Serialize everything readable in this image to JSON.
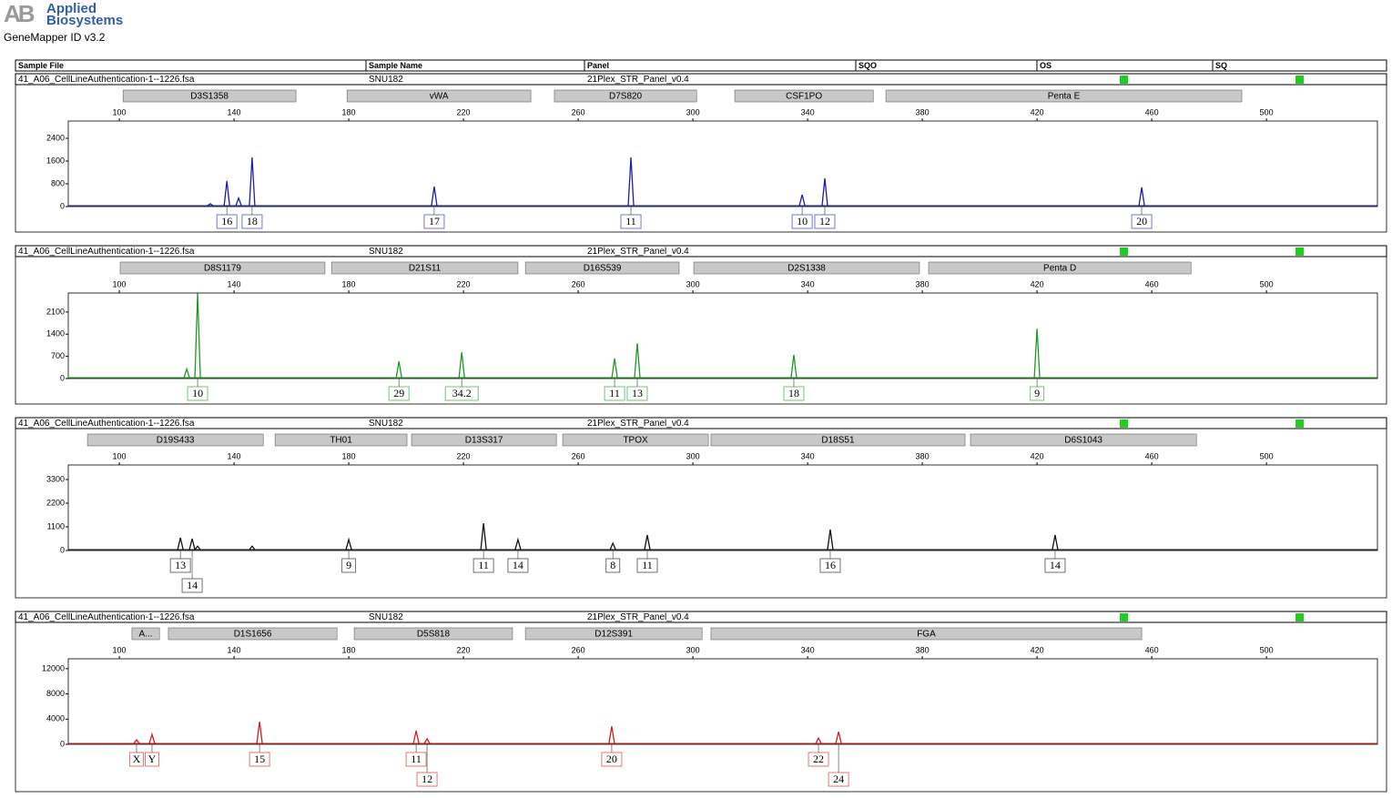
{
  "header": {
    "brand": [
      "Applied",
      "Biosystems"
    ],
    "app": "GeneMapper ID v3.2"
  },
  "columns": [
    "Sample File",
    "Sample Name",
    "Panel",
    "SQO",
    "OS",
    "SQ"
  ],
  "panels": [
    {
      "sample_file": "41_A06_CellLineAuthentication-1--1226.fsa",
      "sample_name": "SNU182",
      "panel": "21Plex_STR_Panel_v0.4",
      "color": "#1c1cb0",
      "xlim": [
        82.2,
        538.7
      ],
      "xticks": [
        100,
        140,
        180,
        220,
        260,
        300,
        340,
        380,
        420,
        460,
        500
      ],
      "ylim": [
        0,
        3008
      ],
      "yticks": [
        0,
        800,
        1600,
        2400
      ],
      "markers": [
        {
          "name": "D3S1358",
          "range": [
            101.3,
            161.6
          ]
        },
        {
          "name": "vWA",
          "range": [
            179.4,
            243.5
          ]
        },
        {
          "name": "D7S820",
          "range": [
            251.7,
            301.3
          ]
        },
        {
          "name": "CSF1PO",
          "range": [
            314.6,
            362.9
          ]
        },
        {
          "name": "Penta E",
          "range": [
            367.3,
            491.4
          ]
        }
      ],
      "peaks": [
        {
          "x": 131.7,
          "height": 100,
          "label": null
        },
        {
          "x": 137.5,
          "height": 896,
          "label": "16"
        },
        {
          "x": 141.6,
          "height": 300,
          "label": null
        },
        {
          "x": 146.3,
          "height": 1728,
          "label": "18"
        },
        {
          "x": 209.8,
          "height": 704,
          "label": "17"
        },
        {
          "x": 278.4,
          "height": 1728,
          "label": "11"
        },
        {
          "x": 338.1,
          "height": 416,
          "label": "10"
        },
        {
          "x": 346.0,
          "height": 992,
          "label": "12"
        },
        {
          "x": 456.5,
          "height": 672,
          "label": "20"
        }
      ]
    },
    {
      "sample_file": "41_A06_CellLineAuthentication-1--1226.fsa",
      "sample_name": "SNU182",
      "panel": "21Plex_STR_Panel_v0.4",
      "color": "#1e9a1e",
      "xlim": [
        82.2,
        538.7
      ],
      "xticks": [
        100,
        140,
        180,
        220,
        260,
        300,
        340,
        380,
        420,
        460,
        500
      ],
      "ylim": [
        0,
        2700
      ],
      "yticks": [
        0,
        700,
        1400,
        2100
      ],
      "markers": [
        {
          "name": "D8S1179",
          "range": [
            100.3,
            171.7
          ]
        },
        {
          "name": "D21S11",
          "range": [
            174.0,
            239.0
          ]
        },
        {
          "name": "D16S539",
          "range": [
            241.6,
            295.2
          ]
        },
        {
          "name": "D2S1338",
          "range": [
            300.3,
            379.0
          ]
        },
        {
          "name": "Penta D",
          "range": [
            382.2,
            473.7
          ]
        }
      ],
      "peaks": [
        {
          "x": 123.5,
          "height": 300,
          "label": null
        },
        {
          "x": 127.3,
          "height": 2686,
          "label": "10"
        },
        {
          "x": 197.5,
          "height": 543,
          "label": "29"
        },
        {
          "x": 219.4,
          "height": 829,
          "label": "34.2"
        },
        {
          "x": 272.7,
          "height": 629,
          "label": "11"
        },
        {
          "x": 280.6,
          "height": 1114,
          "label": "13"
        },
        {
          "x": 335.2,
          "height": 743,
          "label": "18"
        },
        {
          "x": 420.0,
          "height": 1571,
          "label": "9"
        }
      ]
    },
    {
      "sample_file": "41_A06_CellLineAuthentication-1--1226.fsa",
      "sample_name": "SNU182",
      "panel": "21Plex_STR_Panel_v0.4",
      "color": "#111111",
      "xlim": [
        82.2,
        538.7
      ],
      "xticks": [
        100,
        140,
        180,
        220,
        260,
        300,
        340,
        380,
        420,
        460,
        500
      ],
      "ylim": [
        0,
        3977
      ],
      "yticks": [
        0,
        1100,
        2200,
        3300
      ],
      "markers": [
        {
          "name": "D19S433",
          "range": [
            88.9,
            150.2
          ]
        },
        {
          "name": "TH01",
          "range": [
            154.3,
            200.3
          ]
        },
        {
          "name": "D13S317",
          "range": [
            201.9,
            252.4
          ]
        },
        {
          "name": "TPOX",
          "range": [
            254.6,
            305.4
          ]
        },
        {
          "name": "D18S51",
          "range": [
            306.3,
            394.9
          ]
        },
        {
          "name": "D6S1043",
          "range": [
            396.8,
            475.6
          ]
        }
      ],
      "peaks": [
        {
          "x": 121.3,
          "height": 592,
          "label": "13"
        },
        {
          "x": 125.4,
          "height": 550,
          "label": "14"
        },
        {
          "x": 127.3,
          "height": 200,
          "label": null
        },
        {
          "x": 146.3,
          "height": 200,
          "label": null
        },
        {
          "x": 180.0,
          "height": 508,
          "label": "9"
        },
        {
          "x": 227.0,
          "height": 1269,
          "label": "11"
        },
        {
          "x": 239.0,
          "height": 508,
          "label": "14"
        },
        {
          "x": 272.1,
          "height": 338,
          "label": "8"
        },
        {
          "x": 284.1,
          "height": 719,
          "label": "11"
        },
        {
          "x": 347.9,
          "height": 973,
          "label": "16"
        },
        {
          "x": 426.3,
          "height": 719,
          "label": "14"
        }
      ]
    },
    {
      "sample_file": "41_A06_CellLineAuthentication-1--1226.fsa",
      "sample_name": "SNU182",
      "panel": "21Plex_STR_Panel_v0.4",
      "color": "#d01c1c",
      "xlim": [
        82.2,
        538.7
      ],
      "xticks": [
        100,
        140,
        180,
        220,
        260,
        300,
        340,
        380,
        420,
        460,
        500
      ],
      "ylim": [
        0,
        13571
      ],
      "yticks": [
        0,
        4000,
        8000,
        12000
      ],
      "markers": [
        {
          "name": "A...",
          "range": [
            104.4,
            114.0
          ]
        },
        {
          "name": "D1S1656",
          "range": [
            117.1,
            175.9
          ]
        },
        {
          "name": "D5S818",
          "range": [
            181.9,
            237.1
          ]
        },
        {
          "name": "D12S391",
          "range": [
            241.6,
            303.2
          ]
        },
        {
          "name": "FGA",
          "range": [
            306.3,
            456.5
          ]
        }
      ],
      "peaks": [
        {
          "x": 106.0,
          "height": 714,
          "label": "X"
        },
        {
          "x": 111.4,
          "height": 1571,
          "label": "Y"
        },
        {
          "x": 148.9,
          "height": 3571,
          "label": "15"
        },
        {
          "x": 203.5,
          "height": 2143,
          "label": "11"
        },
        {
          "x": 207.3,
          "height": 857,
          "label": "12"
        },
        {
          "x": 271.7,
          "height": 2857,
          "label": "20"
        },
        {
          "x": 343.8,
          "height": 1000,
          "label": "22"
        },
        {
          "x": 350.8,
          "height": 2000,
          "label": "24"
        }
      ]
    }
  ]
}
